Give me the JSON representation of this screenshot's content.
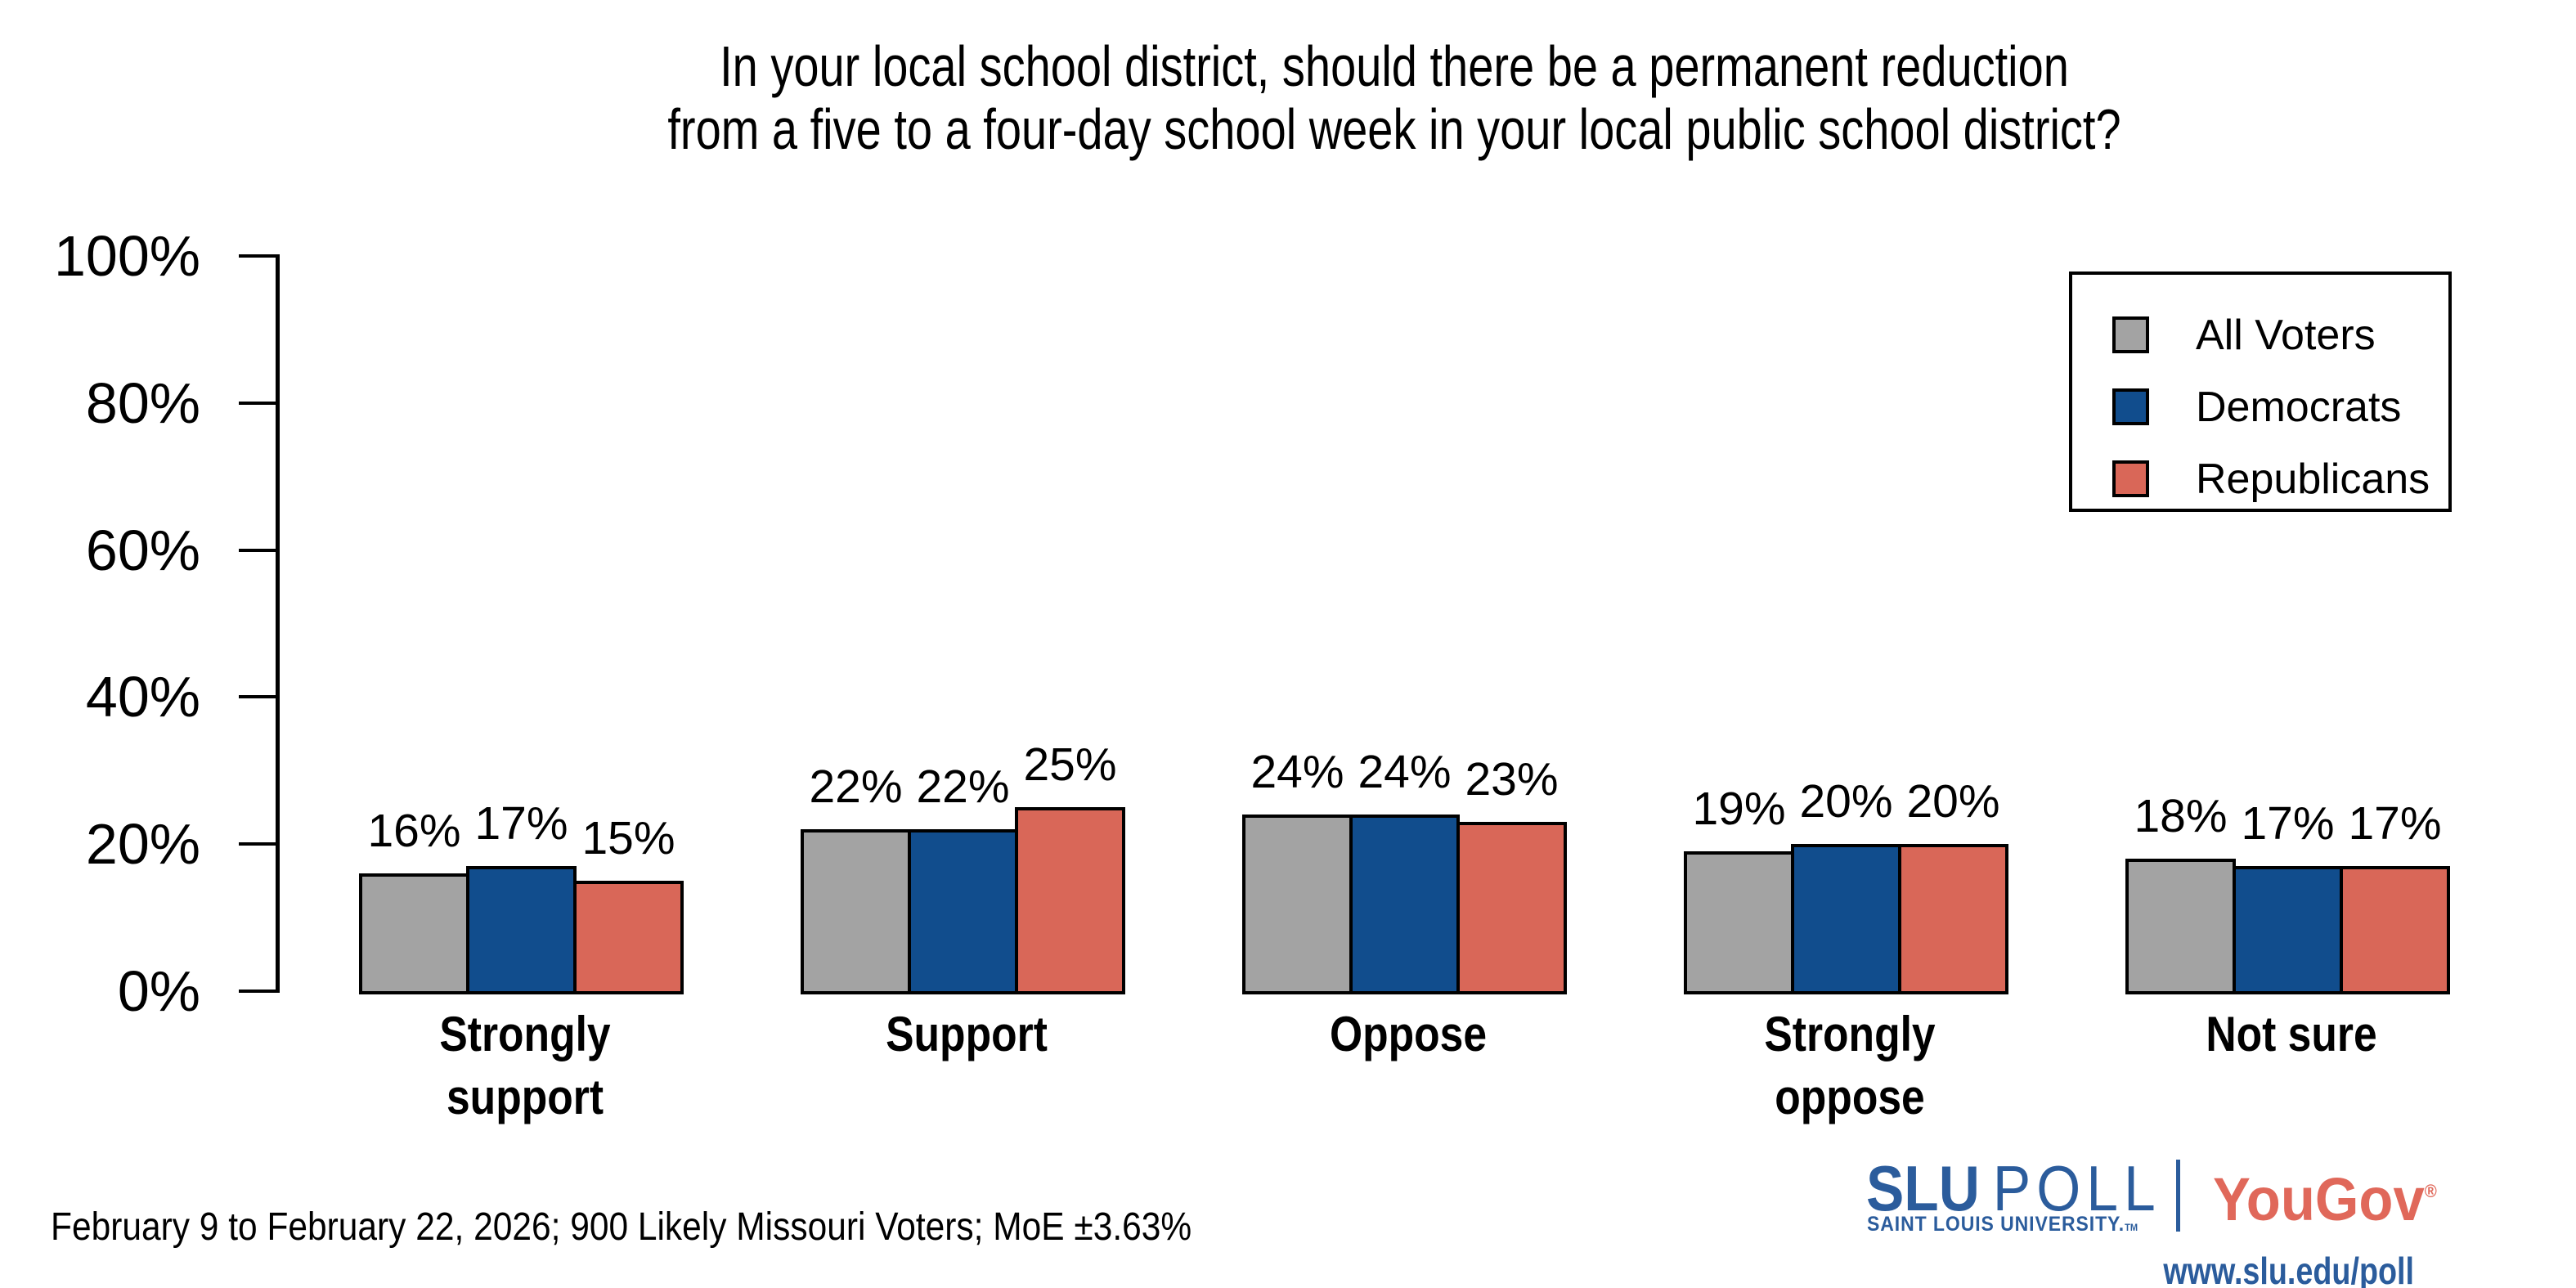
{
  "title": {
    "line1": "In your local school district, should there be a permanent reduction",
    "line2": "from a five to a four-day school week in your local public school district?"
  },
  "chart_data": {
    "type": "bar",
    "categories": [
      "Strongly support",
      "Support",
      "Oppose",
      "Strongly oppose",
      "Not sure"
    ],
    "category_lines": [
      [
        "Strongly",
        "support"
      ],
      [
        "Support"
      ],
      [
        "Oppose"
      ],
      [
        "Strongly",
        "oppose"
      ],
      [
        "Not sure"
      ]
    ],
    "series": [
      {
        "name": "All Voters",
        "color": "#a3a3a3",
        "values": [
          16,
          22,
          24,
          19,
          18
        ]
      },
      {
        "name": "Democrats",
        "color": "#114d8d",
        "values": [
          17,
          22,
          24,
          20,
          17
        ]
      },
      {
        "name": "Republicans",
        "color": "#d96758",
        "values": [
          15,
          25,
          23,
          20,
          17
        ]
      }
    ],
    "value_suffix": "%",
    "yticks": [
      "0%",
      "20%",
      "40%",
      "60%",
      "80%",
      "100%"
    ],
    "ylim": [
      0,
      100
    ],
    "legend_position": "top-right",
    "grid": false
  },
  "footer": {
    "note": "February 9 to February 22, 2026; 900 Likely Missouri Voters; MoE ±3.63%"
  },
  "branding": {
    "slu": "SLU",
    "poll": "POLL",
    "slu_sub": "SAINT LOUIS UNIVERSITY.",
    "slu_tm": "TM",
    "yougov": "YouGov",
    "yougov_reg": "®",
    "url": "www.slu.edu/poll",
    "slu_blue": "#2b5c9c",
    "yougov_red": "#e0685a"
  }
}
